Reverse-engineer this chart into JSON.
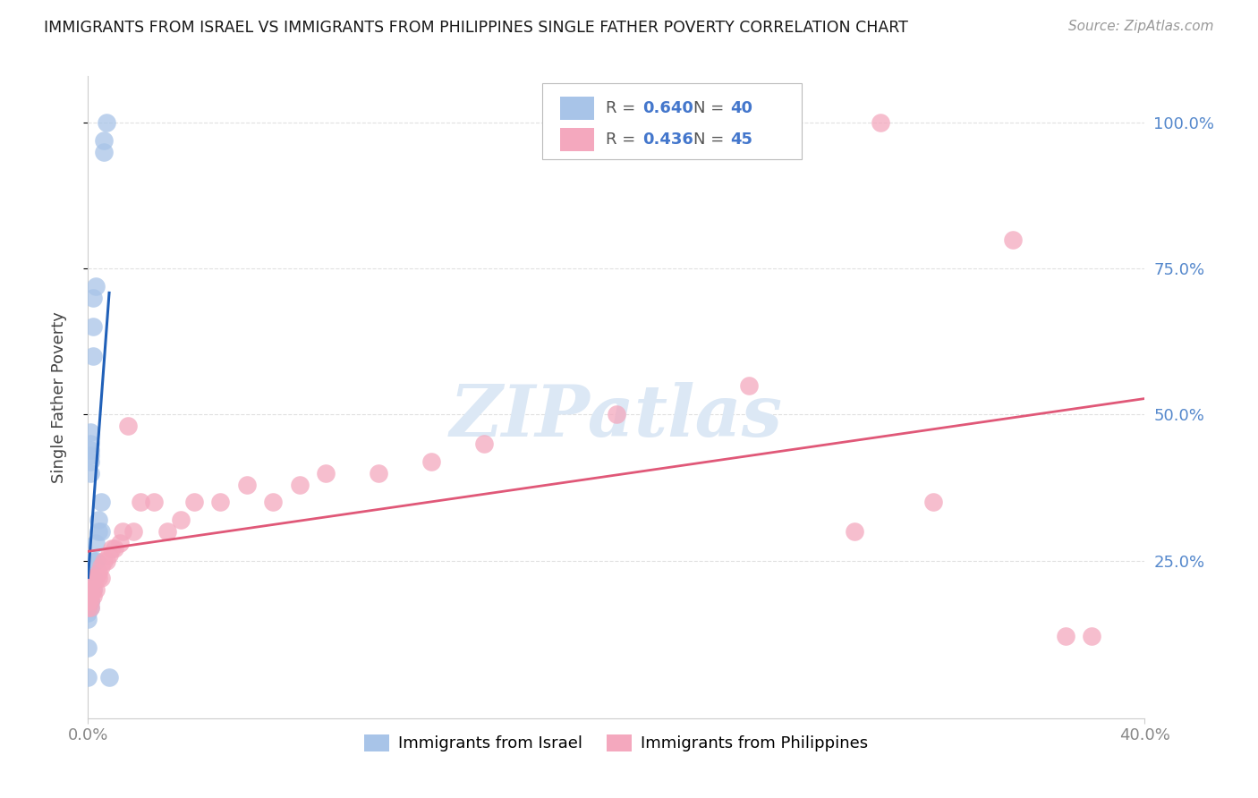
{
  "title": "IMMIGRANTS FROM ISRAEL VS IMMIGRANTS FROM PHILIPPINES SINGLE FATHER POVERTY CORRELATION CHART",
  "source": "Source: ZipAtlas.com",
  "ylabel": "Single Father Poverty",
  "right_yticks": [
    "100.0%",
    "75.0%",
    "50.0%",
    "25.0%"
  ],
  "right_ytick_vals": [
    1.0,
    0.75,
    0.5,
    0.25
  ],
  "israel_color": "#a8c4e8",
  "philippines_color": "#f4a8be",
  "trendline_israel_color": "#2060b8",
  "trendline_philippines_color": "#e05878",
  "watermark_text": "ZIPatlas",
  "watermark_color": "#dce8f5",
  "background_color": "#ffffff",
  "grid_color": "#e0e0e0",
  "axis_color": "#cccccc",
  "title_color": "#1a1a1a",
  "right_axis_label_color": "#5588cc",
  "xtick_color": "#888888",
  "xlim": [
    0.0,
    0.4
  ],
  "ylim": [
    -0.02,
    1.08
  ],
  "legend_r_israel": "0.640",
  "legend_n_israel": "40",
  "legend_r_phil": "0.436",
  "legend_n_phil": "45",
  "legend_text_color": "#555555",
  "legend_val_color": "#4477cc",
  "israel_x": [
    0.0,
    0.0,
    0.0,
    0.0,
    0.0,
    0.0,
    0.0,
    0.0,
    0.0,
    0.0,
    0.001,
    0.001,
    0.001,
    0.001,
    0.001,
    0.001,
    0.001,
    0.001,
    0.001,
    0.001,
    0.001,
    0.001,
    0.001,
    0.002,
    0.002,
    0.002,
    0.002,
    0.002,
    0.002,
    0.003,
    0.003,
    0.003,
    0.004,
    0.004,
    0.005,
    0.005,
    0.006,
    0.006,
    0.007,
    0.008
  ],
  "israel_y": [
    0.2,
    0.2,
    0.18,
    0.18,
    0.17,
    0.17,
    0.16,
    0.15,
    0.1,
    0.05,
    0.22,
    0.22,
    0.2,
    0.2,
    0.18,
    0.18,
    0.17,
    0.4,
    0.42,
    0.43,
    0.44,
    0.45,
    0.47,
    0.2,
    0.22,
    0.25,
    0.6,
    0.65,
    0.7,
    0.25,
    0.28,
    0.72,
    0.3,
    0.32,
    0.3,
    0.35,
    0.95,
    0.97,
    1.0,
    0.05
  ],
  "philippines_x": [
    0.0,
    0.0,
    0.001,
    0.001,
    0.001,
    0.001,
    0.002,
    0.002,
    0.002,
    0.003,
    0.003,
    0.004,
    0.004,
    0.005,
    0.005,
    0.006,
    0.007,
    0.008,
    0.009,
    0.01,
    0.012,
    0.013,
    0.015,
    0.017,
    0.02,
    0.025,
    0.03,
    0.035,
    0.04,
    0.05,
    0.06,
    0.07,
    0.08,
    0.09,
    0.11,
    0.13,
    0.15,
    0.2,
    0.25,
    0.29,
    0.3,
    0.32,
    0.35,
    0.37,
    0.38
  ],
  "philippines_y": [
    0.17,
    0.18,
    0.18,
    0.19,
    0.2,
    0.17,
    0.19,
    0.2,
    0.22,
    0.2,
    0.22,
    0.23,
    0.22,
    0.22,
    0.24,
    0.25,
    0.25,
    0.26,
    0.27,
    0.27,
    0.28,
    0.3,
    0.48,
    0.3,
    0.35,
    0.35,
    0.3,
    0.32,
    0.35,
    0.35,
    0.38,
    0.35,
    0.38,
    0.4,
    0.4,
    0.42,
    0.45,
    0.5,
    0.55,
    0.3,
    1.0,
    0.35,
    0.8,
    0.12,
    0.12
  ]
}
